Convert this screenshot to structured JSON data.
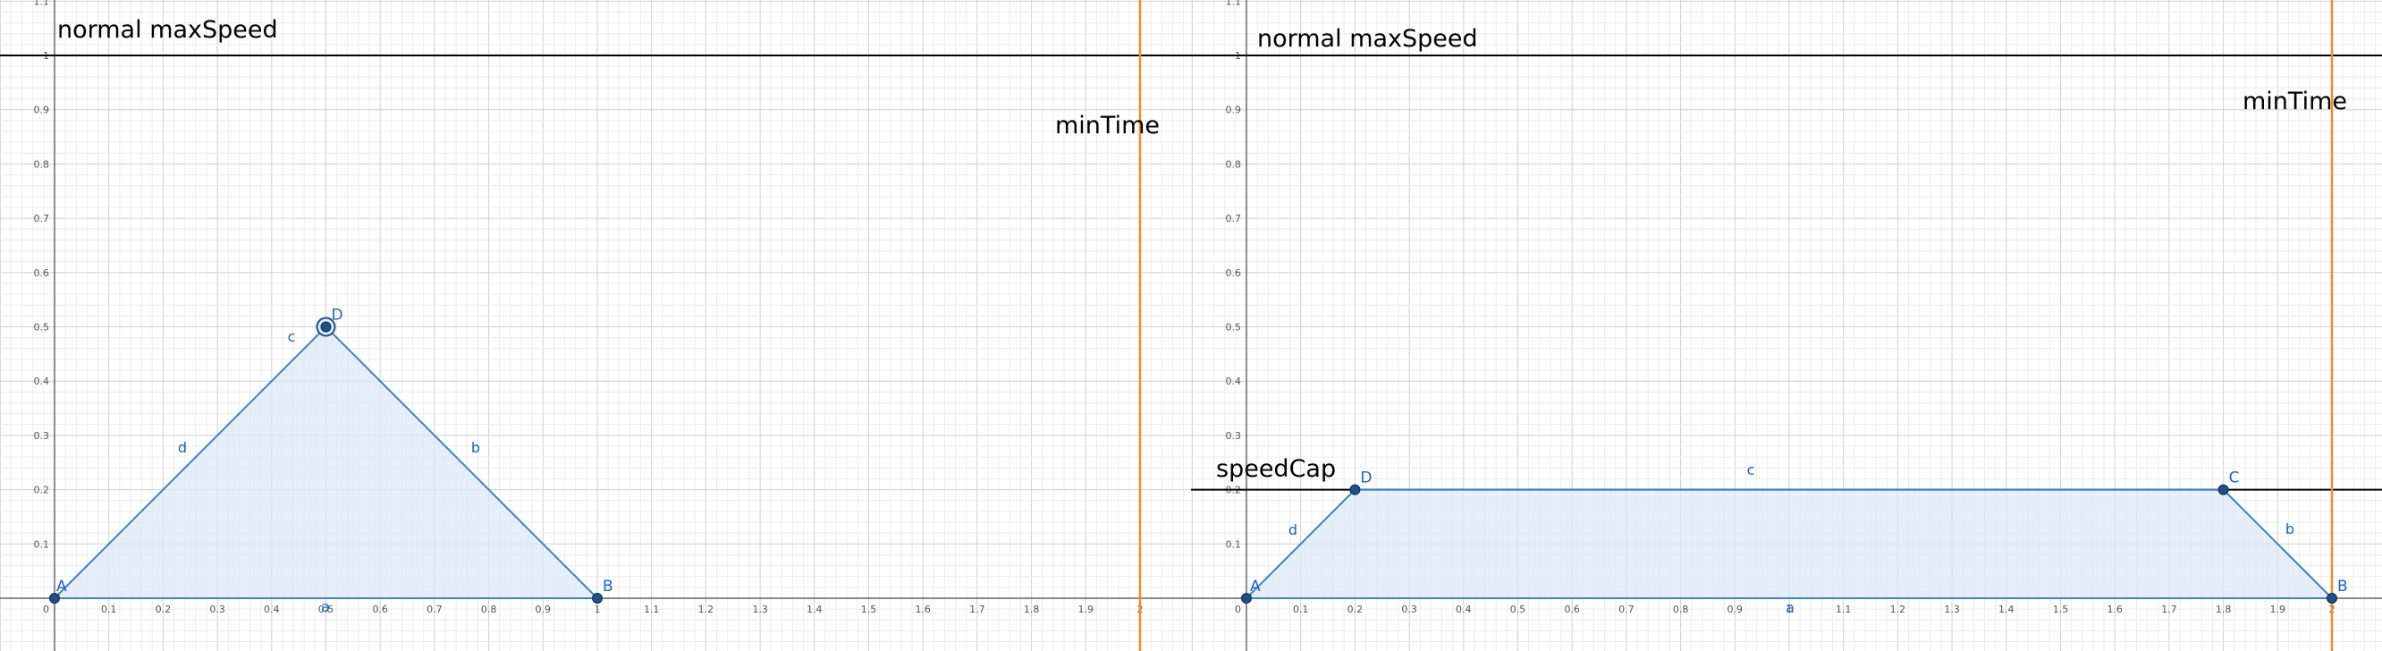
{
  "chart_data": [
    {
      "type": "area",
      "title": "",
      "xlabel": "",
      "ylabel": "",
      "xlim": [
        -0.1,
        2.1
      ],
      "ylim": [
        -0.1,
        1.1
      ],
      "grid": true,
      "x_ticks": [
        0.1,
        0.2,
        0.3,
        0.4,
        0.5,
        0.6,
        0.7,
        0.8,
        0.9,
        1,
        1.1,
        1.2,
        1.3,
        1.4,
        1.5,
        1.6,
        1.7,
        1.8,
        1.9,
        2
      ],
      "x_tick_labels": [
        "0.1",
        "0.2",
        "0.3",
        "0.4",
        "0.5",
        "0.6",
        "0.7",
        "0.8",
        "0.9",
        "1",
        "1.1",
        "1.2",
        "1.3",
        "1.4",
        "1.5",
        "1.6",
        "1.7",
        "1.8",
        "1.9",
        "2"
      ],
      "y_ticks": [
        0.1,
        0.2,
        0.3,
        0.4,
        0.5,
        0.6,
        0.7,
        0.8,
        0.9,
        1,
        1.1
      ],
      "y_tick_labels": [
        "0.1",
        "0.2",
        "0.3",
        "0.4",
        "0.5",
        "0.6",
        "0.7",
        "0.8",
        "0.9",
        "1",
        "1.1"
      ],
      "origin_label": "0",
      "polygon": [
        [
          0,
          0
        ],
        [
          1,
          0
        ],
        [
          0.5,
          0.5
        ]
      ],
      "points": [
        {
          "name": "A",
          "x": 0,
          "y": 0
        },
        {
          "name": "B",
          "x": 1,
          "y": 0
        },
        {
          "name": "D",
          "x": 0.5,
          "y": 0.5,
          "selected": true
        }
      ],
      "segments": [
        {
          "name": "a",
          "from": [
            0,
            0
          ],
          "to": [
            1,
            0
          ]
        },
        {
          "name": "b",
          "from": [
            1,
            0
          ],
          "to": [
            0.5,
            0.5
          ]
        },
        {
          "name": "c",
          "from": [
            0.5,
            0.5
          ],
          "to": [
            0.5,
            0.5
          ]
        },
        {
          "name": "d",
          "from": [
            0.5,
            0.5
          ],
          "to": [
            0,
            0
          ]
        }
      ],
      "hlines": [
        {
          "y": 1,
          "label": "normal maxSpeed",
          "color": "#000000"
        }
      ],
      "vlines": [
        {
          "x": 2,
          "label": "minTime",
          "color": "#f28c28"
        }
      ],
      "colors": {
        "polygon_fill": "#dde8f7",
        "polygon_stroke": "#3b82c4",
        "point": "#1f4f87",
        "label": "#1565c0"
      }
    },
    {
      "type": "area",
      "title": "",
      "xlabel": "",
      "ylabel": "",
      "xlim": [
        -0.1,
        2.1
      ],
      "ylim": [
        -0.1,
        1.1
      ],
      "grid": true,
      "x_ticks": [
        0.1,
        0.2,
        0.3,
        0.4,
        0.5,
        0.6,
        0.7,
        0.8,
        0.9,
        1,
        1.1,
        1.2,
        1.3,
        1.4,
        1.5,
        1.6,
        1.7,
        1.8,
        1.9,
        2
      ],
      "x_tick_labels": [
        "0.1",
        "0.2",
        "0.3",
        "0.4",
        "0.5",
        "0.6",
        "0.7",
        "0.8",
        "0.9",
        "1",
        "1.1",
        "1.2",
        "1.3",
        "1.4",
        "1.5",
        "1.6",
        "1.7",
        "1.8",
        "1.9",
        "2"
      ],
      "y_ticks": [
        0.1,
        0.2,
        0.3,
        0.4,
        0.5,
        0.6,
        0.7,
        0.8,
        0.9,
        1,
        1.1
      ],
      "y_tick_labels": [
        "0.1",
        "0.2",
        "0.3",
        "0.4",
        "0.5",
        "0.6",
        "0.7",
        "0.8",
        "0.9",
        "1",
        "1.1"
      ],
      "origin_label": "0",
      "polygon": [
        [
          0,
          0
        ],
        [
          2,
          0
        ],
        [
          1.8,
          0.2
        ],
        [
          0.2,
          0.2
        ]
      ],
      "points": [
        {
          "name": "A",
          "x": 0,
          "y": 0
        },
        {
          "name": "B",
          "x": 2,
          "y": 0
        },
        {
          "name": "C",
          "x": 1.8,
          "y": 0.2
        },
        {
          "name": "D",
          "x": 0.2,
          "y": 0.2
        }
      ],
      "segments": [
        {
          "name": "a",
          "from": [
            0,
            0
          ],
          "to": [
            2,
            0
          ]
        },
        {
          "name": "b",
          "from": [
            2,
            0
          ],
          "to": [
            1.8,
            0.2
          ]
        },
        {
          "name": "c",
          "from": [
            1.8,
            0.2
          ],
          "to": [
            0.2,
            0.2
          ]
        },
        {
          "name": "d",
          "from": [
            0.2,
            0.2
          ],
          "to": [
            0,
            0
          ]
        }
      ],
      "hlines": [
        {
          "y": 1,
          "label": "normal maxSpeed",
          "color": "#000000"
        },
        {
          "y": 0.2,
          "label": "speedCap",
          "color": "#000000"
        }
      ],
      "vlines": [
        {
          "x": 2,
          "label": "minTime",
          "color": "#f28c28"
        }
      ],
      "colors": {
        "polygon_fill": "#dde8f7",
        "polygon_stroke": "#3b82c4",
        "point": "#1f4f87",
        "label": "#1565c0"
      }
    }
  ]
}
